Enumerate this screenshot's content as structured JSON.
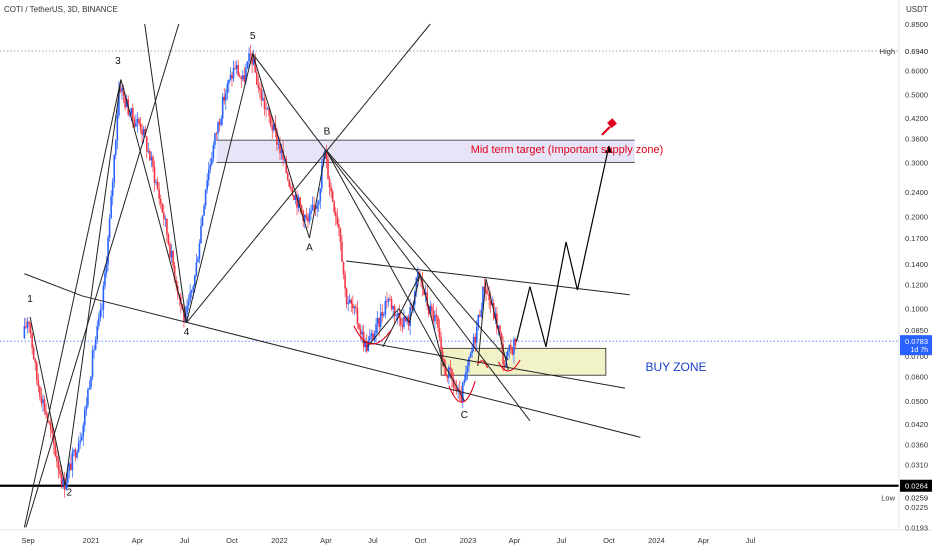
{
  "header": {
    "symbol_title": "COTI / TetherUS, 3D, BINANCE"
  },
  "chart_data": {
    "type": "candlestick",
    "title": "COTI / TetherUS, 3D, BINANCE",
    "y_scale": "log",
    "currency": "USDT",
    "y_tick_labels": [
      "0.8500",
      "0.6940",
      "0.6000",
      "0.5000",
      "0.4200",
      "0.3600",
      "0.3000",
      "0.2400",
      "0.2000",
      "0.1700",
      "0.1400",
      "0.1200",
      "0.1000",
      "0.0850",
      "0.0700",
      "0.0600",
      "0.0500",
      "0.0420",
      "0.0360",
      "0.0310",
      "0.0264",
      "0.0259",
      "0.0225",
      "0.0193"
    ],
    "x_tick_labels": [
      "Sep",
      "2021",
      "Apr",
      "Jul",
      "Oct",
      "2022",
      "Apr",
      "Jul",
      "Oct",
      "2023",
      "Apr",
      "Jul",
      "Oct",
      "2024",
      "Apr",
      "Jul"
    ],
    "price_markers": {
      "high": {
        "label": "High",
        "value": "0.6940"
      },
      "low": {
        "label": "Low",
        "value": "0.0259"
      },
      "support": {
        "value": "0.0264"
      },
      "last": {
        "value": "0.0783",
        "countdown": "1d 7h"
      }
    },
    "annotations": {
      "wave_labels": [
        "1",
        "2",
        "3",
        "4",
        "5",
        "A",
        "B",
        "C"
      ],
      "target_zone": {
        "label": "Mid term target (Important supply zone)",
        "low": 0.3,
        "high": 0.355
      },
      "buy_zone": {
        "label": "BUY ZONE",
        "low": 0.062,
        "high": 0.072
      }
    },
    "price_path": [
      {
        "d": "2020-08-25",
        "p": 0.08
      },
      {
        "d": "2020-09-05",
        "p": 0.095
      },
      {
        "d": "2020-09-20",
        "p": 0.06
      },
      {
        "d": "2020-10-10",
        "p": 0.045
      },
      {
        "d": "2020-10-25",
        "p": 0.035
      },
      {
        "d": "2020-11-12",
        "p": 0.0264
      },
      {
        "d": "2020-12-01",
        "p": 0.033
      },
      {
        "d": "2020-12-20",
        "p": 0.042
      },
      {
        "d": "2021-01-10",
        "p": 0.075
      },
      {
        "d": "2021-01-25",
        "p": 0.1
      },
      {
        "d": "2021-02-10",
        "p": 0.2
      },
      {
        "d": "2021-02-28",
        "p": 0.55
      },
      {
        "d": "2021-03-10",
        "p": 0.48
      },
      {
        "d": "2021-03-25",
        "p": 0.42
      },
      {
        "d": "2021-04-10",
        "p": 0.4
      },
      {
        "d": "2021-05-01",
        "p": 0.3
      },
      {
        "d": "2021-05-25",
        "p": 0.2
      },
      {
        "d": "2021-06-15",
        "p": 0.13
      },
      {
        "d": "2021-07-05",
        "p": 0.09
      },
      {
        "d": "2021-07-25",
        "p": 0.13
      },
      {
        "d": "2021-08-15",
        "p": 0.26
      },
      {
        "d": "2021-09-01",
        "p": 0.36
      },
      {
        "d": "2021-09-20",
        "p": 0.5
      },
      {
        "d": "2021-10-10",
        "p": 0.62
      },
      {
        "d": "2021-10-25",
        "p": 0.55
      },
      {
        "d": "2021-11-10",
        "p": 0.68
      },
      {
        "d": "2021-11-25",
        "p": 0.52
      },
      {
        "d": "2021-12-15",
        "p": 0.42
      },
      {
        "d": "2022-01-01",
        "p": 0.35
      },
      {
        "d": "2022-01-20",
        "p": 0.27
      },
      {
        "d": "2022-02-10",
        "p": 0.22
      },
      {
        "d": "2022-02-28",
        "p": 0.19
      },
      {
        "d": "2022-03-20",
        "p": 0.23
      },
      {
        "d": "2022-04-01",
        "p": 0.33
      },
      {
        "d": "2022-04-12",
        "p": 0.25
      },
      {
        "d": "2022-05-01",
        "p": 0.18
      },
      {
        "d": "2022-05-12",
        "p": 0.11
      },
      {
        "d": "2022-06-01",
        "p": 0.095
      },
      {
        "d": "2022-06-20",
        "p": 0.075
      },
      {
        "d": "2022-07-10",
        "p": 0.085
      },
      {
        "d": "2022-08-01",
        "p": 0.11
      },
      {
        "d": "2022-08-20",
        "p": 0.095
      },
      {
        "d": "2022-09-10",
        "p": 0.09
      },
      {
        "d": "2022-09-30",
        "p": 0.13
      },
      {
        "d": "2022-10-20",
        "p": 0.1
      },
      {
        "d": "2022-11-05",
        "p": 0.09
      },
      {
        "d": "2022-11-15",
        "p": 0.065
      },
      {
        "d": "2022-12-01",
        "p": 0.06
      },
      {
        "d": "2022-12-20",
        "p": 0.05
      },
      {
        "d": "2023-01-05",
        "p": 0.065
      },
      {
        "d": "2023-01-20",
        "p": 0.085
      },
      {
        "d": "2023-02-05",
        "p": 0.12
      },
      {
        "d": "2023-02-20",
        "p": 0.1
      },
      {
        "d": "2023-03-05",
        "p": 0.085
      },
      {
        "d": "2023-03-15",
        "p": 0.065
      },
      {
        "d": "2023-03-25",
        "p": 0.072
      },
      {
        "d": "2023-04-05",
        "p": 0.078
      }
    ],
    "projection_path": [
      {
        "d": "2023-04-05",
        "p": 0.078
      },
      {
        "d": "2023-05-01",
        "p": 0.118
      },
      {
        "d": "2023-06-01",
        "p": 0.075
      },
      {
        "d": "2023-07-10",
        "p": 0.165
      },
      {
        "d": "2023-08-01",
        "p": 0.115
      },
      {
        "d": "2023-10-01",
        "p": 0.34
      }
    ],
    "colors": {
      "up": "#2962ff",
      "down": "#f23645",
      "target_line": "#e0001b",
      "zone_fill_target": "#e8e4f8",
      "zone_fill_buy": "#f2f2c8"
    }
  }
}
